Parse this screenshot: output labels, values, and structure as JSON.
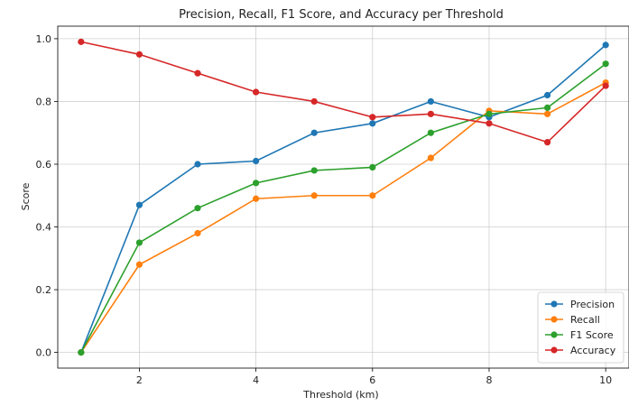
{
  "chart_data": {
    "type": "line",
    "title": "Precision, Recall, F1 Score, and Accuracy per Threshold",
    "xlabel": "Threshold (km)",
    "ylabel": "Score",
    "x": [
      1,
      2,
      3,
      4,
      5,
      6,
      7,
      8,
      9,
      10
    ],
    "xlim": [
      0.6,
      10.4
    ],
    "ylim": [
      -0.05,
      1.04
    ],
    "xticks": [
      2,
      4,
      6,
      8,
      10
    ],
    "yticks": [
      0.0,
      0.2,
      0.4,
      0.6,
      0.8,
      1.0
    ],
    "xtick_labels": [
      "2",
      "4",
      "6",
      "8",
      "10"
    ],
    "ytick_labels": [
      "0.0",
      "0.2",
      "0.4",
      "0.6",
      "0.8",
      "1.0"
    ],
    "grid": true,
    "legend_position": "bottom-right",
    "series": [
      {
        "name": "Precision",
        "color": "#1f77b4",
        "values": [
          0.0,
          0.47,
          0.6,
          0.61,
          0.7,
          0.73,
          0.8,
          0.75,
          0.82,
          0.98
        ]
      },
      {
        "name": "Recall",
        "color": "#ff7f0e",
        "values": [
          0.0,
          0.28,
          0.38,
          0.49,
          0.5,
          0.5,
          0.62,
          0.77,
          0.76,
          0.86
        ]
      },
      {
        "name": "F1 Score",
        "color": "#2ca02c",
        "values": [
          0.0,
          0.35,
          0.46,
          0.54,
          0.58,
          0.59,
          0.7,
          0.76,
          0.78,
          0.92
        ]
      },
      {
        "name": "Accuracy",
        "color": "#d62728",
        "values": [
          0.99,
          0.95,
          0.89,
          0.83,
          0.8,
          0.75,
          0.76,
          0.73,
          0.67,
          0.85
        ]
      }
    ]
  }
}
